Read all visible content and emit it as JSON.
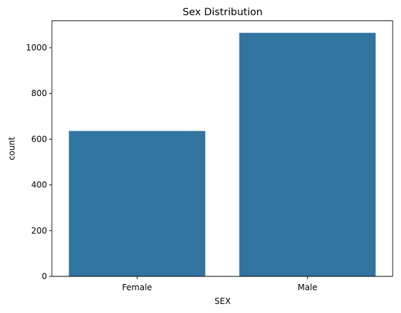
{
  "chart_data": {
    "type": "bar",
    "title": "Sex Distribution",
    "xlabel": "SEX",
    "ylabel": "count",
    "categories": [
      "Female",
      "Male"
    ],
    "values": [
      636,
      1065
    ],
    "ylim": [
      0,
      1118
    ],
    "yticks": [
      0,
      200,
      400,
      600,
      800,
      1000
    ],
    "bar_color": "#3274a1",
    "grid": false
  }
}
